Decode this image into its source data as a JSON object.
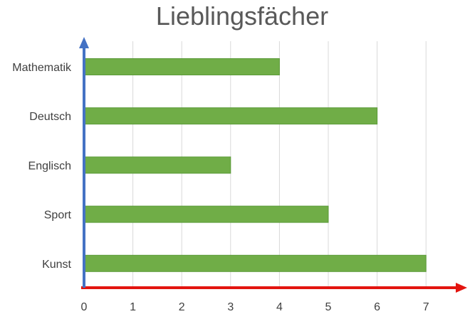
{
  "chart_data": {
    "type": "bar",
    "orientation": "horizontal",
    "title": "Lieblingsfächer",
    "categories": [
      "Mathematik",
      "Deutsch",
      "Englisch",
      "Sport",
      "Kunst"
    ],
    "values": [
      4,
      6,
      3,
      5,
      7
    ],
    "x_ticks": [
      "0",
      "1",
      "2",
      "3",
      "4",
      "5",
      "6",
      "7"
    ],
    "xlim": [
      0,
      7
    ],
    "grid": "vertical",
    "colors": {
      "bar": "#70ad47",
      "bar_border": "#5a9a38",
      "grid": "#d9d9d9",
      "x_axis": "#e3140f",
      "y_axis": "#4472c4"
    }
  }
}
